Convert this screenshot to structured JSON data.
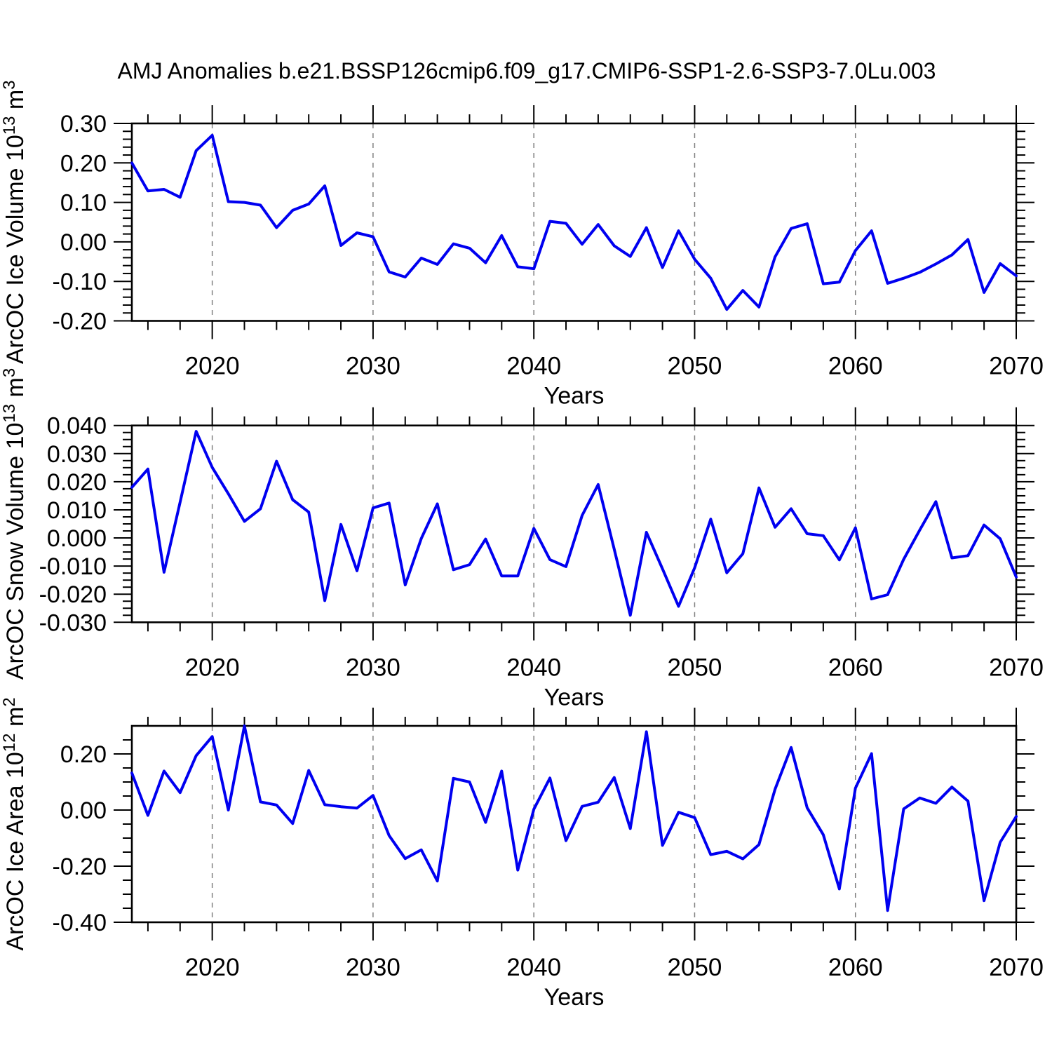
{
  "figure": {
    "title": "AMJ Anomalies b.e21.BSSP126cmip6.f09_g17.CMIP6-SSP1-2.6-SSP3-7.0Lu.003",
    "x_axis_label": "Years",
    "x_tick_labels": [
      "2020",
      "2030",
      "2040",
      "2050",
      "2060",
      "2070"
    ],
    "x_tick_values": [
      2020,
      2030,
      2040,
      2050,
      2060,
      2070
    ],
    "x_grid_values": [
      2020,
      2030,
      2040,
      2050,
      2060
    ],
    "x_minor_step_years": 2
  },
  "style": {
    "line_color": "#0000f0",
    "grid_color": "#808080",
    "axis_color": "#000000",
    "background": "#ffffff"
  },
  "years": [
    2015,
    2016,
    2017,
    2018,
    2019,
    2020,
    2021,
    2022,
    2023,
    2024,
    2025,
    2026,
    2027,
    2028,
    2029,
    2030,
    2031,
    2032,
    2033,
    2034,
    2035,
    2036,
    2037,
    2038,
    2039,
    2040,
    2041,
    2042,
    2043,
    2044,
    2045,
    2046,
    2047,
    2048,
    2049,
    2050,
    2051,
    2052,
    2053,
    2054,
    2055,
    2056,
    2057,
    2058,
    2059,
    2060,
    2061,
    2062,
    2063,
    2064,
    2065,
    2066,
    2067,
    2068,
    2069,
    2070
  ],
  "chart_data": [
    {
      "type": "line",
      "name": "ice-volume",
      "xlabel": "Years",
      "ylabel": "ArcOC Ice Volume 10^13 m^3",
      "ylabel_rich": [
        {
          "t": "ArcOC Ice Volume 10"
        },
        {
          "t": "13",
          "sup": true
        },
        {
          "t": " m"
        },
        {
          "t": "3",
          "sup": true
        }
      ],
      "xlim": [
        2015,
        2070
      ],
      "ylim": [
        -0.2,
        0.3
      ],
      "ytick_labels": [
        "0.30",
        "0.20",
        "0.10",
        "0.00",
        "-0.10",
        "-0.20"
      ],
      "ytick_values": [
        0.3,
        0.2,
        0.1,
        0.0,
        -0.1,
        -0.2
      ],
      "y_major_step": 0.1,
      "y_minor_step": 0.02,
      "values": [
        0.2,
        0.129,
        0.133,
        0.113,
        0.231,
        0.27,
        0.102,
        0.1,
        0.093,
        0.036,
        0.08,
        0.096,
        0.142,
        -0.009,
        0.023,
        0.013,
        -0.076,
        -0.089,
        -0.041,
        -0.057,
        -0.005,
        -0.016,
        -0.053,
        0.016,
        -0.063,
        -0.068,
        0.052,
        0.047,
        -0.006,
        0.044,
        -0.01,
        -0.037,
        0.036,
        -0.065,
        0.028,
        -0.044,
        -0.092,
        -0.171,
        -0.123,
        -0.165,
        -0.038,
        0.034,
        0.046,
        -0.106,
        -0.102,
        -0.022,
        0.028,
        -0.105,
        -0.092,
        -0.077,
        -0.056,
        -0.033,
        0.006,
        -0.128,
        -0.055,
        -0.086
      ]
    },
    {
      "type": "line",
      "name": "snow-volume",
      "xlabel": "Years",
      "ylabel": "ArcOC Snow Volume 10^13 m^3",
      "ylabel_rich": [
        {
          "t": "ArcOC Snow Volume 10"
        },
        {
          "t": "13",
          "sup": true
        },
        {
          "t": " m"
        },
        {
          "t": "3",
          "sup": true
        }
      ],
      "xlim": [
        2015,
        2070
      ],
      "ylim": [
        -0.03,
        0.04
      ],
      "ytick_labels": [
        "0.040",
        "0.030",
        "0.020",
        "0.010",
        "0.000",
        "-0.010",
        "-0.020",
        "-0.030"
      ],
      "ytick_values": [
        0.04,
        0.03,
        0.02,
        0.01,
        0.0,
        -0.01,
        -0.02,
        -0.03
      ],
      "y_major_step": 0.01,
      "y_minor_step": 0.0025,
      "values": [
        0.018,
        0.0245,
        -0.0122,
        0.0127,
        0.0379,
        0.0251,
        0.0157,
        0.0059,
        0.0104,
        0.0273,
        0.0136,
        0.0092,
        -0.0223,
        0.0048,
        -0.0117,
        0.0107,
        0.0124,
        -0.0167,
        -0.0002,
        0.0121,
        -0.0113,
        -0.0095,
        -0.0004,
        -0.0135,
        -0.0135,
        0.0034,
        -0.0077,
        -0.0102,
        0.008,
        0.019,
        -0.004,
        -0.0275,
        0.002,
        -0.011,
        -0.0243,
        -0.0106,
        0.0067,
        -0.0124,
        -0.0056,
        0.0178,
        0.0038,
        0.0104,
        0.0015,
        0.0008,
        -0.0078,
        0.0036,
        -0.0217,
        -0.0202,
        -0.0076,
        0.0028,
        0.0129,
        -0.0071,
        -0.0063,
        0.0046,
        -0.0003,
        -0.0139
      ]
    },
    {
      "type": "line",
      "name": "ice-area",
      "xlabel": "Years",
      "ylabel": "ArcOC Ice Area 10^12 m^2",
      "ylabel_rich": [
        {
          "t": "ArcOC Ice Area 10"
        },
        {
          "t": "12",
          "sup": true
        },
        {
          "t": " m"
        },
        {
          "t": "2",
          "sup": true
        }
      ],
      "xlim": [
        2015,
        2070
      ],
      "ylim": [
        -0.4,
        0.3
      ],
      "ytick_labels": [
        "0.20",
        "0.00",
        "-0.20",
        "-0.40"
      ],
      "ytick_values": [
        0.2,
        0.0,
        -0.2,
        -0.4
      ],
      "y_major_step": 0.2,
      "y_minor_step": 0.05,
      "values": [
        0.132,
        -0.019,
        0.139,
        0.062,
        0.194,
        0.262,
        0.0,
        0.3,
        0.029,
        0.018,
        -0.048,
        0.141,
        0.019,
        0.012,
        0.007,
        0.052,
        -0.091,
        -0.173,
        -0.142,
        -0.253,
        0.113,
        0.1,
        -0.044,
        0.139,
        -0.214,
        0.003,
        0.114,
        -0.109,
        0.013,
        0.028,
        0.116,
        -0.066,
        0.279,
        -0.126,
        -0.008,
        -0.027,
        -0.159,
        -0.147,
        -0.174,
        -0.123,
        0.074,
        0.223,
        0.008,
        -0.088,
        -0.281,
        0.078,
        0.201,
        -0.358,
        0.004,
        0.043,
        0.024,
        0.082,
        0.032,
        -0.323,
        -0.115,
        -0.023
      ]
    }
  ]
}
